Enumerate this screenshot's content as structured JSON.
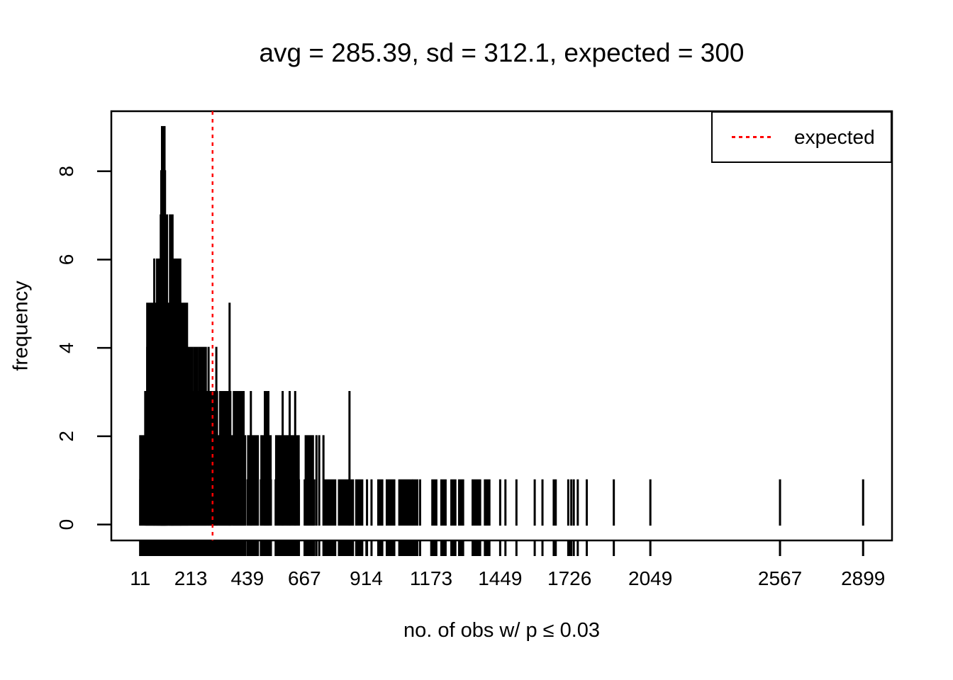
{
  "figure": {
    "title": "avg = 285.39, sd = 312.1, expected = 300",
    "xlabel": "no. of obs w/ p ≤ 0.03",
    "ylabel": "frequency"
  },
  "legend": {
    "label": "expected",
    "line_color": "#ff0000",
    "line_style": "dotted",
    "position": "top-right"
  },
  "colors": {
    "spike": "#000000",
    "axis": "#000000",
    "expected_line": "#ff0000",
    "background": "#ffffff"
  },
  "chart_data": {
    "type": "bar",
    "variant": "spike-histogram",
    "title": "avg = 285.39, sd = 312.1, expected = 300",
    "xlabel": "no. of obs w/ p ≤ 0.03",
    "ylabel": "frequency",
    "x_ticks": [
      11,
      213,
      439,
      667,
      914,
      1173,
      1449,
      1726,
      2049,
      2567,
      2899
    ],
    "y_ticks": [
      0,
      2,
      4,
      6,
      8
    ],
    "xlim": [
      -104.5,
      3014.5
    ],
    "ylim": [
      -0.36,
      9.36
    ],
    "grid": false,
    "rug": true,
    "legend_position": "top-right",
    "expected_line_x": 300,
    "stats": {
      "avg": 285.39,
      "sd": 312.1,
      "expected": 300
    },
    "runs": [
      [
        98,
        108,
        9
      ],
      [
        95,
        110,
        8
      ],
      [
        93,
        118,
        7
      ],
      [
        130,
        140,
        7
      ],
      [
        87,
        115,
        6
      ],
      [
        138,
        171,
        6
      ],
      [
        39,
        168,
        5
      ],
      [
        174,
        182,
        5
      ],
      [
        190,
        198,
        5
      ],
      [
        39,
        218,
        4
      ],
      [
        226,
        238,
        4
      ],
      [
        246,
        273,
        4
      ],
      [
        36,
        318,
        3
      ],
      [
        330,
        371,
        3
      ],
      [
        385,
        424,
        3
      ],
      [
        509,
        523,
        3
      ],
      [
        11,
        430,
        2
      ],
      [
        442,
        481,
        2
      ],
      [
        495,
        532,
        2
      ],
      [
        554,
        594,
        2
      ],
      [
        602,
        644,
        2
      ],
      [
        672,
        701,
        2
      ],
      [
        11,
        430,
        1
      ],
      [
        440,
        480,
        1
      ],
      [
        493,
        533,
        1
      ],
      [
        552,
        596,
        1
      ],
      [
        601,
        645,
        1
      ],
      [
        668,
        706,
        1
      ],
      [
        751,
        790,
        1
      ],
      [
        805,
        861,
        1
      ],
      [
        874,
        898,
        1
      ],
      [
        962,
        978,
        1
      ],
      [
        996,
        1026,
        1
      ],
      [
        1046,
        1096,
        1
      ],
      [
        1102,
        1118,
        1
      ],
      [
        1178,
        1194,
        1
      ],
      [
        1214,
        1231,
        1
      ],
      [
        1254,
        1270,
        1
      ],
      [
        1285,
        1301,
        1
      ],
      [
        1339,
        1369,
        1
      ],
      [
        1388,
        1406,
        1
      ]
    ],
    "spikes": [
      [
        31,
        3
      ],
      [
        67,
        6
      ],
      [
        78,
        6
      ],
      [
        84,
        6
      ],
      [
        284,
        4
      ],
      [
        315,
        4
      ],
      [
        368,
        5
      ],
      [
        453,
        3
      ],
      [
        580,
        3
      ],
      [
        608,
        3
      ],
      [
        630,
        3
      ],
      [
        847,
        3
      ],
      [
        715,
        2
      ],
      [
        726,
        2
      ],
      [
        743,
        2
      ],
      [
        917,
        1
      ],
      [
        935,
        1
      ],
      [
        1129,
        1
      ],
      [
        1449,
        1
      ],
      [
        1470,
        1
      ],
      [
        1514,
        1
      ],
      [
        1587,
        1
      ],
      [
        1618,
        1
      ],
      [
        1663,
        1
      ],
      [
        1671,
        1
      ],
      [
        1721,
        1
      ],
      [
        1733,
        1
      ],
      [
        1743,
        1
      ],
      [
        1759,
        1
      ],
      [
        1795,
        1
      ],
      [
        1903,
        1
      ],
      [
        2049,
        1
      ],
      [
        2567,
        1
      ],
      [
        2899,
        1
      ]
    ]
  }
}
